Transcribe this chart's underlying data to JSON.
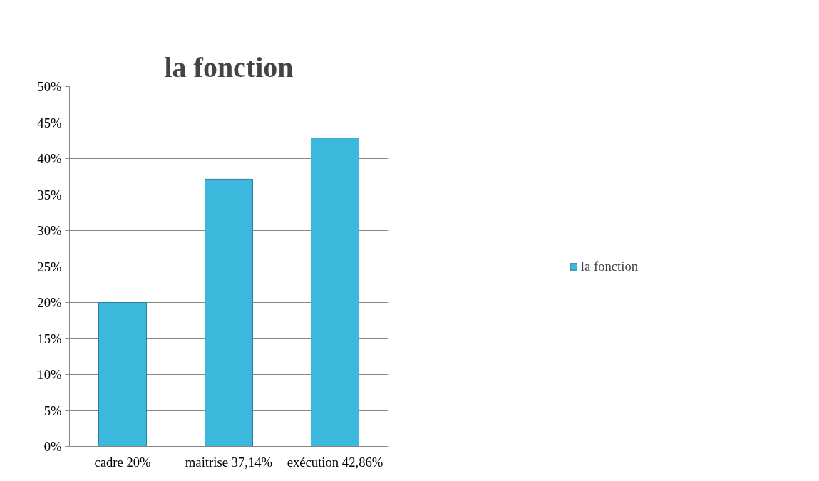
{
  "chart_data": {
    "type": "bar",
    "title": "la fonction",
    "categories": [
      "cadre 20%",
      "maitrise 37,14%",
      "exécution 42,86%"
    ],
    "series": [
      {
        "name": "la fonction",
        "color": "#3bb8dc",
        "values": [
          20,
          37.14,
          42.86
        ]
      }
    ],
    "ylim": [
      0,
      50
    ],
    "yticks": [
      {
        "value": 0,
        "label": "0%"
      },
      {
        "value": 5,
        "label": "5%"
      },
      {
        "value": 10,
        "label": "10%"
      },
      {
        "value": 15,
        "label": "15%"
      },
      {
        "value": 20,
        "label": "20%"
      },
      {
        "value": 25,
        "label": "25%"
      },
      {
        "value": 30,
        "label": "30%"
      },
      {
        "value": 35,
        "label": "35%"
      },
      {
        "value": 40,
        "label": "40%"
      },
      {
        "value": 45,
        "label": "45%"
      },
      {
        "value": 50,
        "label": "50%"
      }
    ],
    "grid": "y",
    "legend": "right"
  }
}
